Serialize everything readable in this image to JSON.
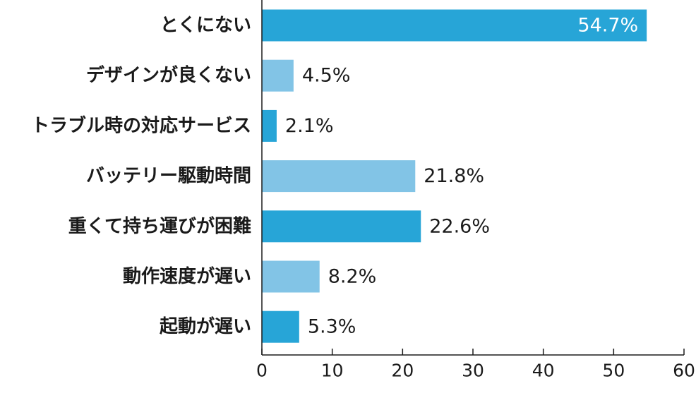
{
  "chart_data": {
    "type": "bar",
    "orientation": "horizontal",
    "title": "",
    "xlabel": "",
    "ylabel": "",
    "categories": [
      "とくにない",
      "デザインが良くない",
      "トラブル時の対応サービス",
      "バッテリー駆動時間",
      "重くて持ち運びが困難",
      "動作速度が遅い",
      "起動が遅い"
    ],
    "values": [
      54.7,
      4.5,
      2.1,
      21.8,
      22.6,
      8.2,
      5.3
    ],
    "value_labels": [
      "54.7%",
      "4.5%",
      "2.1%",
      "21.8%",
      "22.6%",
      "8.2%",
      "5.3%"
    ],
    "bar_colors": [
      "#27a5d7",
      "#82c4e6",
      "#27a5d7",
      "#82c4e6",
      "#27a5d7",
      "#82c4e6",
      "#27a5d7"
    ],
    "xlim": [
      0,
      60
    ],
    "xticks": [
      0,
      10,
      20,
      30,
      40,
      50,
      60
    ],
    "grid": false,
    "legend": "none"
  }
}
